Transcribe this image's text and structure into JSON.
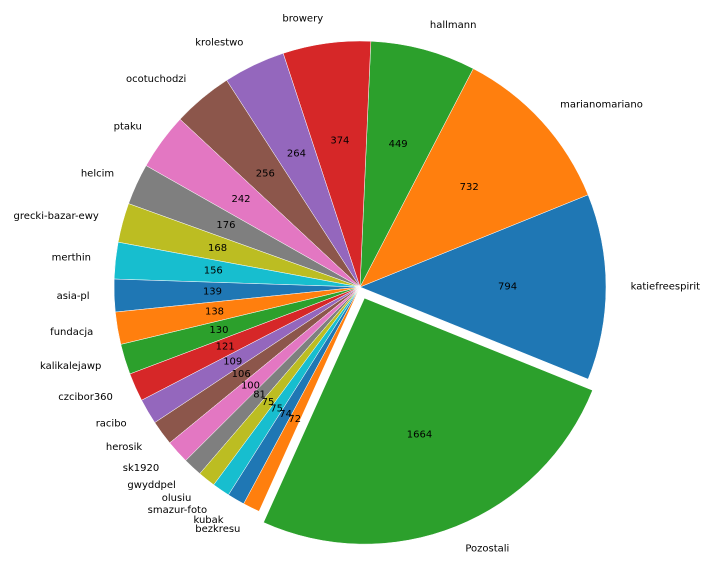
{
  "chart_data": {
    "type": "pie",
    "title": "",
    "slices": [
      {
        "label": "katiefreespirit",
        "value": 794,
        "color": "#1f77b4"
      },
      {
        "label": "marianomariano",
        "value": 732,
        "color": "#ff7f0e"
      },
      {
        "label": "hallmann",
        "value": 449,
        "color": "#2ca02c"
      },
      {
        "label": "browery",
        "value": 374,
        "color": "#d62728"
      },
      {
        "label": "krolestwo",
        "value": 264,
        "color": "#9467bd"
      },
      {
        "label": "ocotuchodzi",
        "value": 256,
        "color": "#8c564b"
      },
      {
        "label": "ptaku",
        "value": 242,
        "color": "#e377c2"
      },
      {
        "label": "helcim",
        "value": 176,
        "color": "#7f7f7f"
      },
      {
        "label": "grecki-bazar-ewy",
        "value": 168,
        "color": "#bcbd22"
      },
      {
        "label": "merthin",
        "value": 156,
        "color": "#17becf"
      },
      {
        "label": "asia-pl",
        "value": 139,
        "color": "#1f77b4"
      },
      {
        "label": "fundacja",
        "value": 138,
        "color": "#ff7f0e"
      },
      {
        "label": "kalikalejawp",
        "value": 130,
        "color": "#2ca02c"
      },
      {
        "label": "czcibor360",
        "value": 121,
        "color": "#d62728"
      },
      {
        "label": "racibo",
        "value": 109,
        "color": "#9467bd"
      },
      {
        "label": "herosik",
        "value": 106,
        "color": "#8c564b"
      },
      {
        "label": "sk1920",
        "value": 100,
        "color": "#e377c2"
      },
      {
        "label": "gwyddpel",
        "value": 81,
        "color": "#7f7f7f"
      },
      {
        "label": "olusiu",
        "value": 75,
        "color": "#bcbd22"
      },
      {
        "label": "smazur-foto",
        "value": 75,
        "color": "#17becf"
      },
      {
        "label": "kubak",
        "value": 74,
        "color": "#1f77b4"
      },
      {
        "label": "bezkresu",
        "value": 72,
        "color": "#ff7f0e"
      },
      {
        "label": "Pozostali",
        "value": 1664,
        "color": "#2ca02c"
      }
    ],
    "start_angle_deg": -22,
    "direction": "counterclockwise",
    "exploded": [
      "Pozostali"
    ]
  }
}
